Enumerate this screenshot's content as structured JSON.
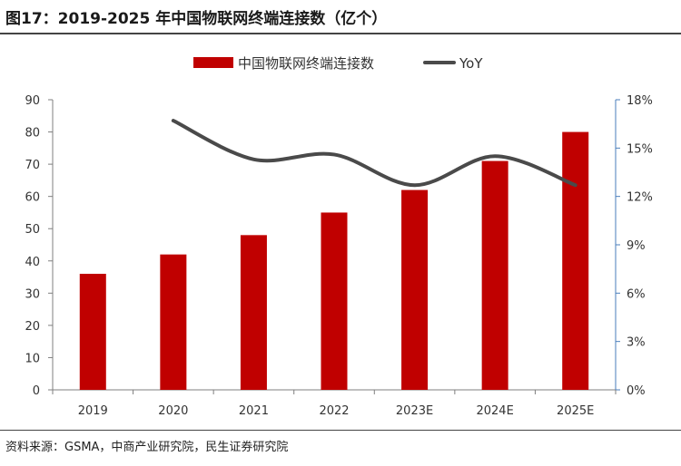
{
  "figure": {
    "title": "图17：2019-2025 年中国物联网终端连接数（亿个）",
    "source": "资料来源：GSMA，中商产业研究院，民生证券研究院"
  },
  "colors": {
    "bar": "#C00000",
    "line": "#4A4A4A",
    "right_axis": "#4A7EBB",
    "axis": "#7F7F7F"
  },
  "chart_data": {
    "type": "bar",
    "categories": [
      "2019",
      "2020",
      "2021",
      "2022",
      "2023E",
      "2024E",
      "2025E"
    ],
    "series": [
      {
        "name": "中国物联网终端连接数",
        "type": "bar",
        "axis": "left",
        "values": [
          36,
          42,
          48,
          55,
          62,
          71,
          80
        ]
      },
      {
        "name": "YoY",
        "type": "line",
        "axis": "right",
        "values": [
          null,
          16.7,
          14.3,
          14.6,
          12.7,
          14.5,
          12.7
        ]
      }
    ],
    "ylim_left": [
      0,
      90
    ],
    "yticks_left": [
      "0",
      "10",
      "20",
      "30",
      "40",
      "50",
      "60",
      "70",
      "80",
      "90"
    ],
    "ylim_right": [
      0,
      18
    ],
    "yticks_right": [
      "0%",
      "3%",
      "6%",
      "9%",
      "12%",
      "15%",
      "18%"
    ],
    "legend_position": "top",
    "grid": false
  }
}
